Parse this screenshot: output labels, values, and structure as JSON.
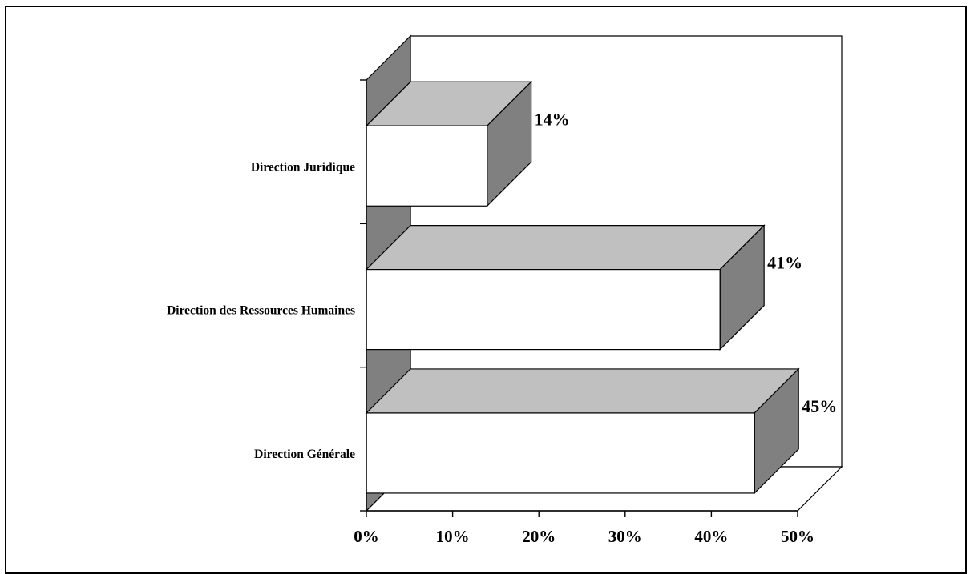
{
  "chart_data": {
    "type": "bar",
    "orientation": "horizontal",
    "three_d": true,
    "categories": [
      "Direction Générale",
      "Direction des Ressources Humaines",
      "Direction Juridique"
    ],
    "values": [
      45,
      41,
      14
    ],
    "value_labels": [
      "45%",
      "41%",
      "14%"
    ],
    "xlim": [
      0,
      50
    ],
    "x_ticks": [
      "0%",
      "10%",
      "20%",
      "30%",
      "40%",
      "50%"
    ],
    "title": "",
    "xlabel": "",
    "ylabel": "",
    "grid": false,
    "legend": "none",
    "colors": {
      "bar_front": "#ffffff",
      "bar_top": "#c0c0c0",
      "bar_side": "#808080",
      "wall": "#808080",
      "outline": "#000000"
    }
  }
}
